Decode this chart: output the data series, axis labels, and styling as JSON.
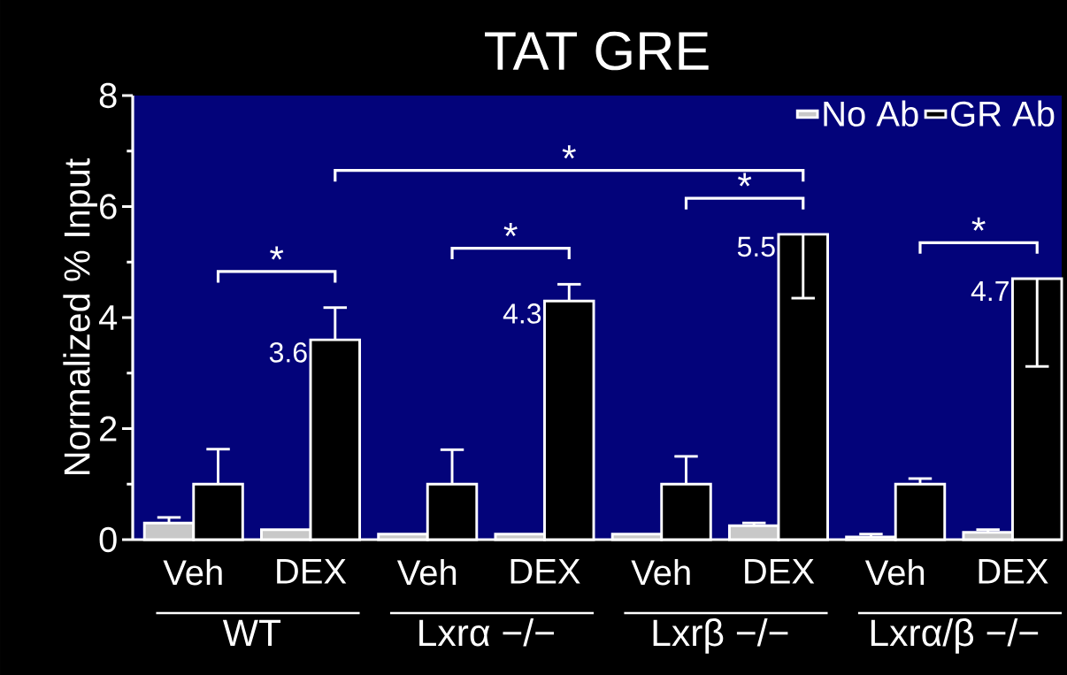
{
  "chart_data": {
    "type": "bar",
    "title": "TAT GRE",
    "ylabel": "Normalized % Input",
    "categories": [
      "Veh",
      "DEX",
      "Veh",
      "DEX",
      "Veh",
      "DEX",
      "Veh",
      "DEX"
    ],
    "series": [
      {
        "name": "No Ab",
        "color": "#c8c8c8",
        "values": [
          0.3,
          0.18,
          0.1,
          0.1,
          0.1,
          0.25,
          0.05,
          0.13
        ],
        "errors": [
          [
            0.3,
            0.4
          ],
          null,
          null,
          null,
          null,
          [
            0.25,
            0.3
          ],
          [
            0.05,
            0.1
          ],
          [
            0.13,
            0.18
          ]
        ]
      },
      {
        "name": "GR Ab",
        "color": "#000000",
        "values": [
          1.0,
          3.6,
          1.0,
          4.3,
          1.0,
          5.5,
          1.0,
          4.7
        ],
        "errors": [
          [
            1.0,
            1.63
          ],
          [
            3.6,
            4.18
          ],
          [
            1.0,
            1.62
          ],
          [
            4.3,
            4.6
          ],
          [
            1.0,
            1.5
          ],
          [
            4.35,
            5.5
          ],
          [
            1.0,
            1.1
          ],
          [
            3.12,
            4.7
          ]
        ],
        "value_labels": [
          null,
          "3.6",
          null,
          "4.3",
          null,
          "5.5",
          null,
          "4.7"
        ]
      }
    ],
    "ylim": [
      0,
      8
    ],
    "yticks": [
      0,
      2,
      4,
      6,
      8
    ],
    "legend": "top right",
    "annotations": [
      "WT",
      "Lxrα −/−",
      "Lxrβ −/−",
      "Lxrα/β −/−",
      "*",
      "*",
      "*",
      "*",
      "*"
    ]
  }
}
